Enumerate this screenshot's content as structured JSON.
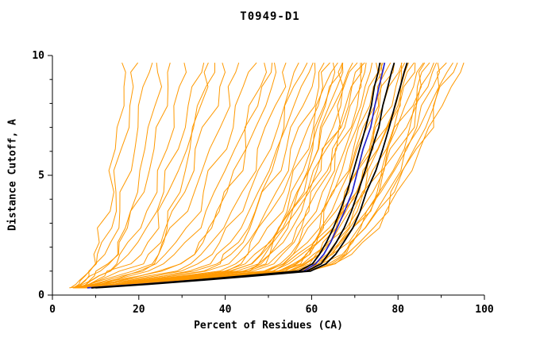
{
  "chart_data": {
    "type": "line",
    "title": "T0949-D1",
    "xlabel": "Percent of Residues (CA)",
    "ylabel": "Distance Cutoff, A",
    "xlim": [
      0,
      100
    ],
    "ylim": [
      0,
      10
    ],
    "x_ticks": [
      0,
      20,
      40,
      60,
      80,
      100
    ],
    "x_minor_ticks": [
      10,
      30,
      50,
      70,
      90
    ],
    "y_ticks": [
      0,
      5,
      10
    ],
    "y_minor_ticks": [
      1,
      2,
      3,
      4,
      6,
      7,
      8,
      9
    ],
    "grid": false,
    "legend": "none",
    "background": "#ffffff",
    "curve_param_format": [
      "x_at_y_0.3",
      "x_at_y_1.0",
      "x_at_y_9.7"
    ],
    "series_groups": [
      {
        "name": "model-curves",
        "role": "predicted models",
        "color": "#ff9900",
        "width": 1,
        "jitter": 0.9,
        "curves": [
          [
            5,
            8,
            17
          ],
          [
            6,
            9,
            19
          ],
          [
            4,
            9,
            22
          ],
          [
            7,
            11,
            25
          ],
          [
            5,
            10,
            28
          ],
          [
            6,
            12,
            31
          ],
          [
            5,
            13,
            34
          ],
          [
            7,
            14,
            37
          ],
          [
            6,
            16,
            40
          ],
          [
            5,
            18,
            43
          ],
          [
            8,
            20,
            46
          ],
          [
            6,
            22,
            49
          ],
          [
            7,
            25,
            52
          ],
          [
            5,
            28,
            55
          ],
          [
            6,
            30,
            57
          ],
          [
            8,
            32,
            59
          ],
          [
            5,
            34,
            61
          ],
          [
            7,
            36,
            63
          ],
          [
            6,
            38,
            64
          ],
          [
            5,
            40,
            65
          ],
          [
            8,
            41,
            66
          ],
          [
            6,
            42,
            67
          ],
          [
            7,
            43,
            68
          ],
          [
            5,
            44,
            69
          ],
          [
            6,
            45,
            70
          ],
          [
            8,
            46,
            71
          ],
          [
            5,
            47,
            72
          ],
          [
            7,
            48,
            73
          ],
          [
            6,
            49,
            74
          ],
          [
            5,
            50,
            75
          ],
          [
            8,
            51,
            76
          ],
          [
            6,
            52,
            77
          ],
          [
            7,
            52,
            78
          ],
          [
            5,
            53,
            79
          ],
          [
            6,
            53,
            80
          ],
          [
            8,
            54,
            81
          ],
          [
            5,
            54,
            82
          ],
          [
            7,
            55,
            83
          ],
          [
            6,
            55,
            84
          ],
          [
            5,
            56,
            85
          ],
          [
            8,
            56,
            86
          ],
          [
            6,
            57,
            87
          ],
          [
            7,
            57,
            88
          ],
          [
            5,
            58,
            89
          ],
          [
            6,
            58,
            90
          ],
          [
            8,
            59,
            91
          ],
          [
            5,
            59,
            92
          ],
          [
            7,
            60,
            93
          ],
          [
            6,
            60,
            94
          ],
          [
            5,
            45,
            66
          ],
          [
            7,
            40,
            72
          ],
          [
            6,
            50,
            84
          ],
          [
            8,
            35,
            58
          ],
          [
            4,
            26,
            50
          ],
          [
            6,
            20,
            36
          ]
        ]
      },
      {
        "name": "reference-curve",
        "role": "highlighted model",
        "color": "#2222cc",
        "width": 1.7,
        "jitter": 0.18,
        "curves": [
          [
            8,
            58,
            77
          ]
        ]
      },
      {
        "name": "best-curves",
        "role": "top models",
        "color": "#000000",
        "width": 1.8,
        "jitter": 0.18,
        "curves": [
          [
            9,
            57,
            76
          ],
          [
            9,
            59,
            79
          ],
          [
            10,
            60,
            82
          ]
        ]
      }
    ]
  }
}
